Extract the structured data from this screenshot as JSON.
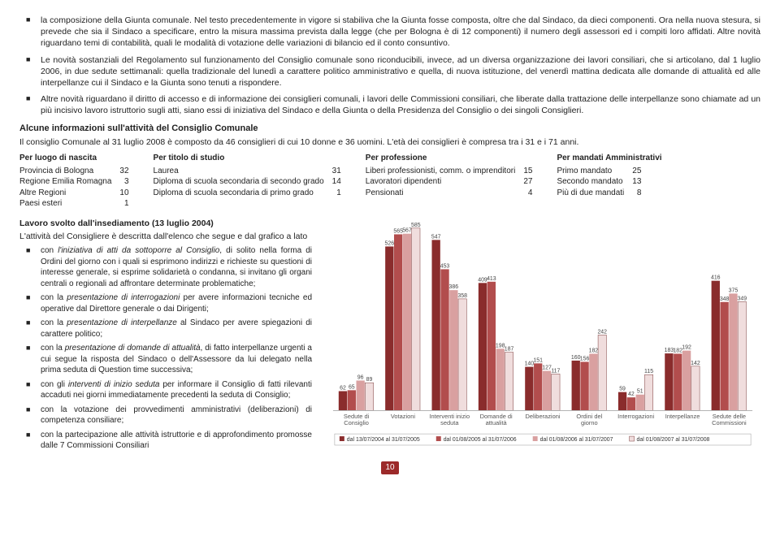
{
  "bullets": [
    "la composizione della Giunta comunale. Nel testo precedentemente in vigore si stabiliva che la Giunta fosse composta, oltre che dal Sindaco, da dieci componenti. Ora nella nuova stesura, si prevede che sia il Sindaco a specificare, entro la misura massima prevista dalla legge (che per Bologna è di 12 componenti) il numero degli assessori ed i compiti loro affidati. Altre novità riguardano temi di contabilità, quali le modalità di votazione delle variazioni di bilancio ed il conto consuntivo.",
    "Le novità sostanziali del Regolamento sul funzionamento del Consiglio comunale sono riconducibili, invece, ad un diversa organizzazione dei lavori consiliari, che si articolano, dal 1 luglio 2006, in due sedute settimanali: quella tradizionale del lunedì a carattere politico amministrativo e quella, di nuova istituzione, del venerdì mattina dedicata alle domande di attualità ed alle interpellanze cui il Sindaco e la Giunta sono tenuti a rispondere.",
    "Altre novità riguardano il diritto di accesso e di informazione dei consiglieri comunali, i lavori delle Commissioni consiliari, che liberate dalla trattazione delle interpellanze sono chiamate ad un più incisivo lavoro istruttorio sugli atti, siano essi di iniziativa del Sindaco e della Giunta o della Presidenza del Consiglio o dei singoli Consiglieri."
  ],
  "section_title": "Alcune informazioni sull'attività del Consiglio Comunale",
  "intro": "Il consiglio Comunale al 31 luglio 2008 è composto da 46 consiglieri di cui 10 donne e 36 uomini. L'età dei consiglieri è compresa tra i 31 e i 71 anni.",
  "stats": [
    {
      "header": "Per luogo di nascita",
      "rows": [
        [
          "Provincia di Bologna",
          "32"
        ],
        [
          "Regione Emilia Romagna",
          "3"
        ],
        [
          "Altre Regioni",
          "10"
        ],
        [
          "Paesi esteri",
          "1"
        ]
      ]
    },
    {
      "header": "Per titolo di studio",
      "rows": [
        [
          "Laurea",
          "31"
        ],
        [
          "Diploma di scuola secondaria di secondo grado",
          "14"
        ],
        [
          "Diploma di scuola secondaria di primo grado",
          "1"
        ]
      ]
    },
    {
      "header": "Per professione",
      "rows": [
        [
          "Liberi professionisti, comm. o imprenditori",
          "15"
        ],
        [
          "Lavoratori dipendenti",
          "27"
        ],
        [
          "Pensionati",
          "4"
        ]
      ]
    },
    {
      "header": "Per mandati Amministrativi",
      "rows": [
        [
          "Primo mandato",
          "25"
        ],
        [
          "Secondo mandato",
          "13"
        ],
        [
          "Più di due mandati",
          "8"
        ]
      ]
    }
  ],
  "work_title": "Lavoro svolto dall'insediamento (13 luglio 2004)",
  "work_intro": "L'attività del Consigliere è descritta dall'elenco che segue e dal grafico a lato",
  "work_items": [
    {
      "pre": "con ",
      "em": "l'iniziativa di atti da sottoporre al Consiglio",
      "post": ", di solito nella forma di Ordini del giorno con i quali si esprimono indirizzi e richieste su questioni di interesse generale, si esprime solidarietà o condanna, si invitano gli organi centrali o regionali ad affrontare determinate problematiche;"
    },
    {
      "pre": "con la ",
      "em": "presentazione di interrogazioni",
      "post": " per avere informazioni tecniche ed operative dal Direttore generale o dai Dirigenti;"
    },
    {
      "pre": "con la ",
      "em": "presentazione di interpellanze",
      "post": " al Sindaco per avere spiegazioni di carattere politico;"
    },
    {
      "pre": "con la ",
      "em": "presentazione di domande di attualità",
      "post": ", di fatto interpellanze urgenti a cui segue la risposta del Sindaco o dell'Assessore da lui delegato nella prima seduta di Question time successiva;"
    },
    {
      "pre": "con gli ",
      "em": "interventi di inizio seduta",
      "post": " per informare il Consiglio di fatti rilevanti accaduti nei giorni immediatamente precedenti la seduta di Consiglio;"
    },
    {
      "pre": "con la votazione dei provvedimenti amministrativi (deliberazioni) di competenza consiliare;",
      "em": "",
      "post": ""
    },
    {
      "pre": "con la partecipazione alle attività istruttorie e di approfondimento promosse dalle 7 Commissioni Consiliari",
      "em": "",
      "post": ""
    }
  ],
  "chart": {
    "ymax": 600,
    "series_colors": [
      "#8a2c2c",
      "#b24d4d",
      "#d9a0a0",
      "#f0dddd"
    ],
    "grid_color": "#ffffff",
    "plot_bg": "#ffffff",
    "categories": [
      "Sedute di Consiglio",
      "Votazioni",
      "Interventi inizio seduta",
      "Domande di attualità",
      "Deliberazioni",
      "Ordini del giorno",
      "Interrogazioni",
      "Interpellanze",
      "Sedute delle Commissioni"
    ],
    "values": [
      [
        62,
        65,
        96,
        89
      ],
      [
        526,
        565,
        567,
        585
      ],
      [
        547,
        453,
        386,
        358
      ],
      [
        409,
        413,
        198,
        187
      ],
      [
        140,
        151,
        127,
        117
      ],
      [
        160,
        156,
        182,
        242
      ],
      [
        59,
        42,
        51,
        115
      ],
      [
        183,
        182,
        192,
        142
      ],
      [
        416,
        348,
        375,
        349
      ]
    ],
    "legend": [
      "dal 13/07/2004 al 31/07/2005",
      "dal 01/08/2005 al 31/07/2006",
      "dal 01/08/2006 al 31/07/2007",
      "dal 01/08/2007 al 31/07/2008"
    ]
  },
  "page_number": "10"
}
